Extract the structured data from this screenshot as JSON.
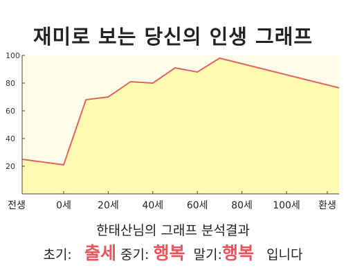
{
  "title": "재미로 보는 당신의 인생 그래프",
  "chart_data": {
    "type": "area",
    "x": [
      -1,
      0,
      10,
      20,
      30,
      40,
      50,
      60,
      70,
      80,
      90,
      100
    ],
    "y": [
      25,
      21,
      68,
      70,
      81,
      80,
      91,
      88,
      98,
      94,
      90,
      86
    ],
    "ylim": [
      0,
      100
    ],
    "yticks": [
      20,
      40,
      60,
      80,
      100
    ],
    "xticks": [
      {
        "value": -1,
        "label": "전생"
      },
      {
        "value": 0,
        "label": "0세"
      },
      {
        "value": 20,
        "label": "20세"
      },
      {
        "value": 40,
        "label": "40세"
      },
      {
        "value": 60,
        "label": "60세"
      },
      {
        "value": 80,
        "label": "80세"
      },
      {
        "value": 100,
        "label": "100세"
      },
      {
        "value": 120,
        "label": "환생"
      }
    ],
    "colors": {
      "line": "#e06464",
      "fill": "#fffbb0",
      "background": "#fffde8"
    }
  },
  "summary": "한태산님의 그래프 분석결과",
  "result": {
    "early_label": "초기:",
    "early_value": "출세",
    "mid_label": "중기:",
    "mid_value": "행복",
    "late_label": "말기:",
    "late_value": "행복",
    "ending": "입니다"
  }
}
